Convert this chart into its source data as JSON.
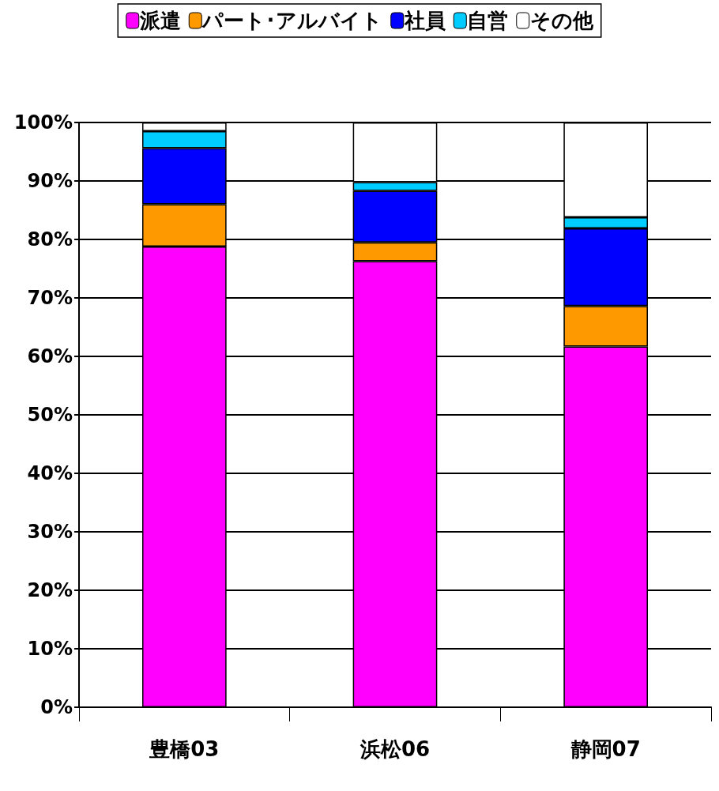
{
  "chart_data": {
    "type": "bar",
    "stacked": true,
    "categories": [
      "豊橋03",
      "浜松06",
      "静岡07"
    ],
    "series": [
      {
        "name": "派遣",
        "color": "#ff00ff",
        "values": [
          78.8,
          76.3,
          61.7
        ]
      },
      {
        "name": "パート･アルバイト",
        "color": "#ff9900",
        "values": [
          7.2,
          3.2,
          6.9
        ]
      },
      {
        "name": "社員",
        "color": "#0000ff",
        "values": [
          9.6,
          8.8,
          13.3
        ]
      },
      {
        "name": "自営",
        "color": "#00ccff",
        "values": [
          2.9,
          1.5,
          1.9
        ]
      },
      {
        "name": "その他",
        "color": "#ffffff",
        "values": [
          1.5,
          10.2,
          16.2
        ]
      }
    ],
    "ylim": [
      0,
      100
    ],
    "yticks": [
      {
        "value": 0,
        "label": "0%"
      },
      {
        "value": 10,
        "label": "10%"
      },
      {
        "value": 20,
        "label": "20%"
      },
      {
        "value": 30,
        "label": "30%"
      },
      {
        "value": 40,
        "label": "40%"
      },
      {
        "value": 50,
        "label": "50%"
      },
      {
        "value": 60,
        "label": "60%"
      },
      {
        "value": 70,
        "label": "70%"
      },
      {
        "value": 80,
        "label": "80%"
      },
      {
        "value": 90,
        "label": "90%"
      },
      {
        "value": 100,
        "label": "100%"
      }
    ],
    "grid": "y",
    "legend": "top"
  }
}
